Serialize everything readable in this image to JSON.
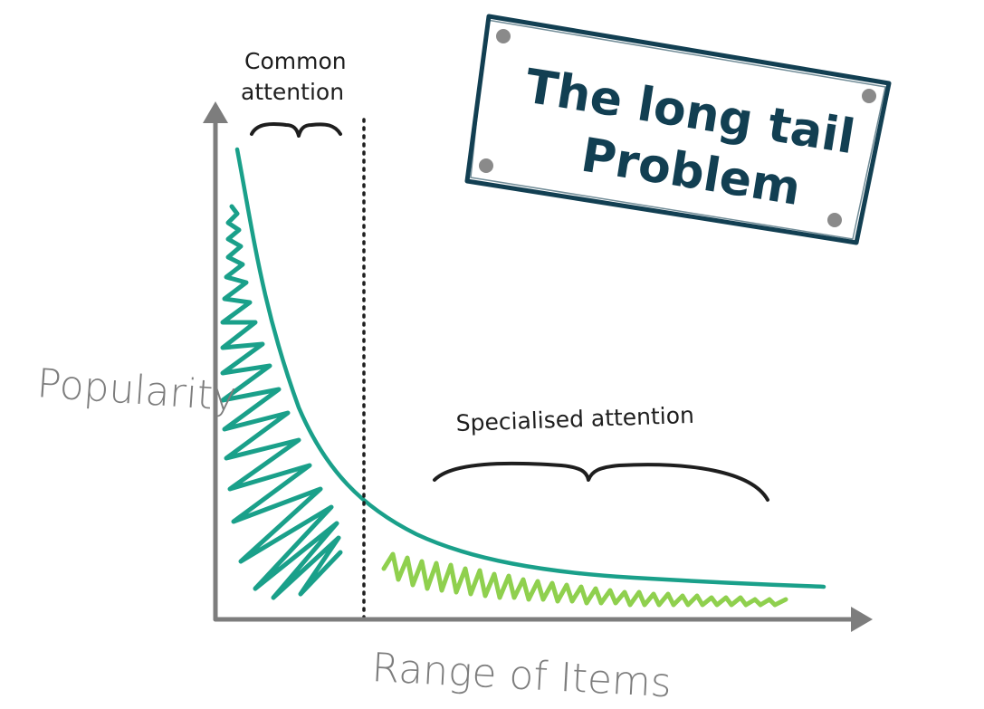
{
  "title": {
    "line1": "The long tail",
    "line2": "Problem"
  },
  "axes": {
    "y_label": "Popularity",
    "x_label": "Range of Items"
  },
  "annotations": {
    "head_line1": "Common",
    "head_line2": "attention",
    "tail": "Specialised attention"
  },
  "colors": {
    "head": "#1aa08a",
    "tail": "#8fd04e",
    "axis": "#7d7d7d",
    "ink": "#1e1e1e",
    "title_ink": "#123f52",
    "pin": "#8a8a8a"
  },
  "icons": {
    "x_axis_arrow": "arrow-right",
    "y_axis_arrow": "arrow-up",
    "title_pins": "pin-dot"
  }
}
